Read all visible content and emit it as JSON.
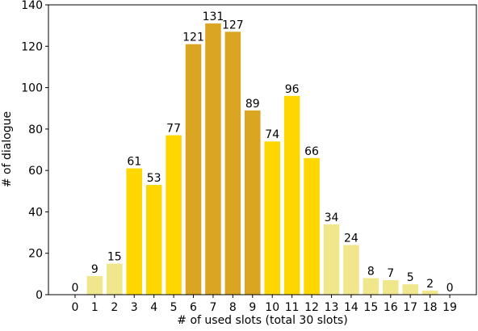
{
  "chart_data": {
    "type": "bar",
    "xlabel": "# of used slots (total 30 slots)",
    "ylabel": "# of dialogue",
    "categories": [
      "0",
      "1",
      "2",
      "3",
      "4",
      "5",
      "6",
      "7",
      "8",
      "9",
      "10",
      "11",
      "12",
      "13",
      "14",
      "15",
      "16",
      "17",
      "18",
      "19"
    ],
    "values": [
      0,
      9,
      15,
      61,
      53,
      77,
      121,
      131,
      127,
      89,
      74,
      96,
      66,
      34,
      24,
      8,
      7,
      5,
      2,
      0
    ],
    "colors": [
      "#f0e68c",
      "#f0e68c",
      "#f0e68c",
      "#ffd700",
      "#ffd700",
      "#ffd700",
      "#daa520",
      "#daa520",
      "#daa520",
      "#daa520",
      "#ffd700",
      "#ffd700",
      "#ffd700",
      "#f0e68c",
      "#f0e68c",
      "#f0e68c",
      "#f0e68c",
      "#f0e68c",
      "#f0e68c",
      "#f0e68c"
    ],
    "ylim": [
      0,
      140
    ],
    "yticks": [
      0,
      20,
      40,
      60,
      80,
      100,
      120,
      140
    ],
    "grid": false
  }
}
